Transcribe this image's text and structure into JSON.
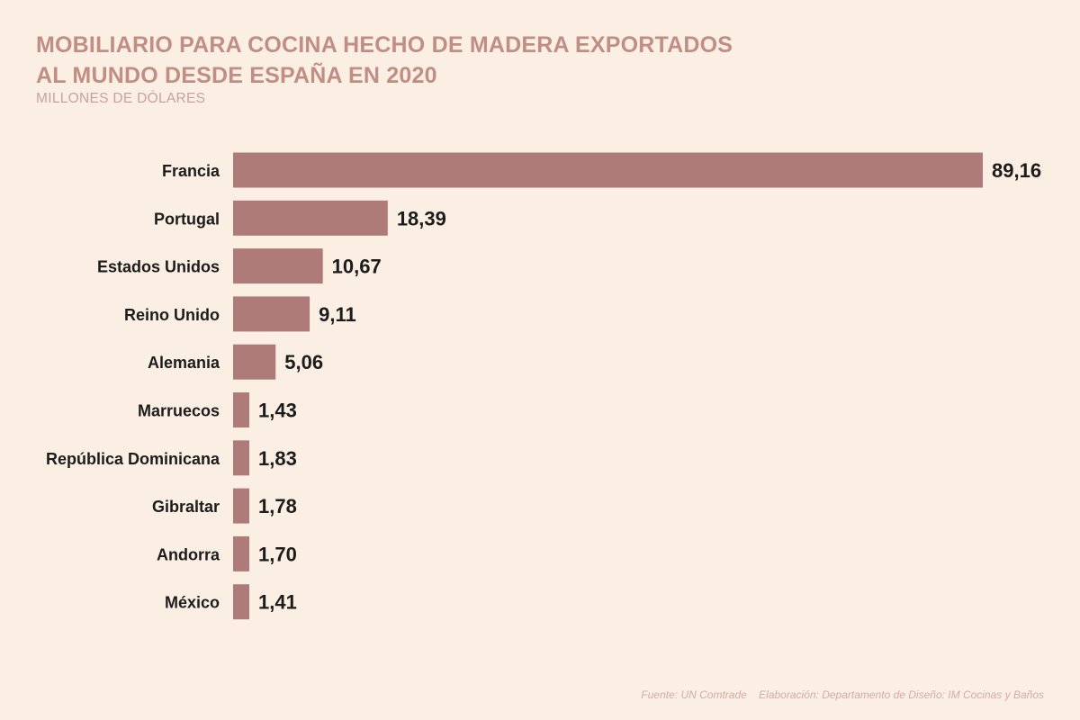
{
  "header": {
    "title_line1": "MOBILIARIO PARA COCINA HECHO DE MADERA EXPORTADOS",
    "title_line2": "AL MUNDO DESDE ESPAÑA EN 2020",
    "subtitle": "MILLONES DE DÓLARES"
  },
  "footer": {
    "source": "Fuente: UN Comtrade",
    "credit": "Elaboración: Departamento de Diseño: IM Cocinas y Baños"
  },
  "colors": {
    "background": "#fbefe4",
    "bar": "#af7b79",
    "title": "#c08e84",
    "label": "#1c1c1c"
  },
  "chart_data": {
    "type": "bar",
    "orientation": "horizontal",
    "categories": [
      "Francia",
      "Portugal",
      "Estados Unidos",
      "Reino Unido",
      "Alemania",
      "Marruecos",
      "República Dominicana",
      "Gibraltar",
      "Andorra",
      "México"
    ],
    "values": [
      89.16,
      18.39,
      10.67,
      9.11,
      5.06,
      1.43,
      1.83,
      1.78,
      1.7,
      1.41
    ],
    "value_labels": [
      "89,16",
      "18,39",
      "10,67",
      "9,11",
      "5,06",
      "1,43",
      "1,83",
      "1,78",
      "1,70",
      "1,41"
    ],
    "title": "MOBILIARIO PARA COCINA HECHO DE MADERA EXPORTADOS AL MUNDO DESDE ESPAÑA EN 2020",
    "unit": "MILLONES DE DÓLARES",
    "xlabel": "",
    "ylabel": "",
    "grid": false,
    "legend": "none"
  }
}
